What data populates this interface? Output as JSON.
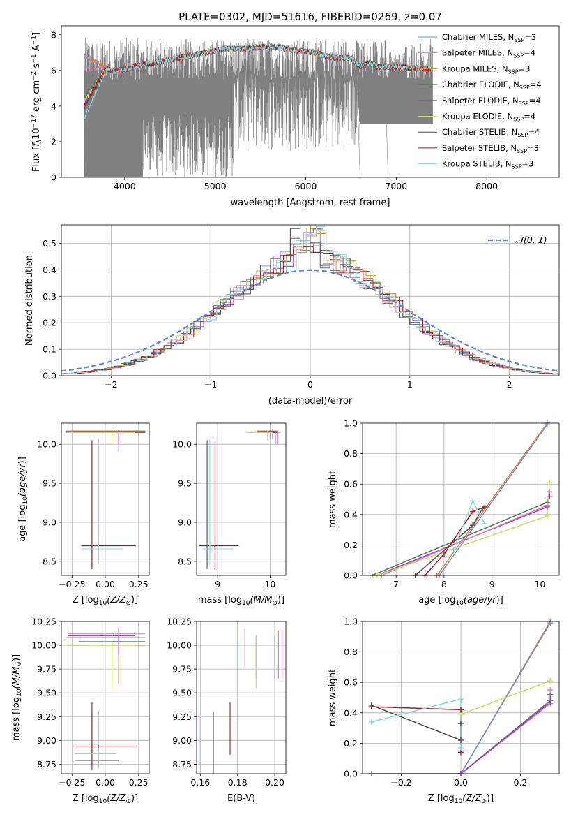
{
  "title": "PLATE=0302, MJD=51616, FIBERID=0269, z=0.07",
  "colors": {
    "chabrier_miles": "#6a8fd8",
    "salpeter_miles": "#e07fbf",
    "kroupa_miles": "#e8843a",
    "chabrier_elodie": "#557a55",
    "salpeter_elodie": "#9b3fbf",
    "kroupa_elodie": "#c8e060",
    "chabrier_stelib": "#4d4d4d",
    "salpeter_stelib": "#b5161c",
    "kroupa_stelib": "#7fdbe0",
    "observed": "#808080",
    "gaussian": "#5b85d6"
  },
  "legend_labels": [
    {
      "text": "Chabrier MILES, N",
      "sub": "SSP",
      "val": "=3",
      "color": "chabrier_miles"
    },
    {
      "text": "Salpeter MILES, N",
      "sub": "SSP",
      "val": "=4",
      "color": "salpeter_miles"
    },
    {
      "text": "Kroupa MILES, N",
      "sub": "SSP",
      "val": "=3",
      "color": "kroupa_miles"
    },
    {
      "text": "Chabrier ELODIE, N",
      "sub": "SSP",
      "val": "=4",
      "color": "chabrier_elodie"
    },
    {
      "text": "Salpeter ELODIE, N",
      "sub": "SSP",
      "val": "=4",
      "color": "salpeter_elodie"
    },
    {
      "text": "Kroupa ELODIE, N",
      "sub": "SSP",
      "val": "=4",
      "color": "kroupa_elodie"
    },
    {
      "text": "Chabrier STELIB, N",
      "sub": "SSP",
      "val": "=4",
      "color": "chabrier_stelib"
    },
    {
      "text": "Salpeter STELIB, N",
      "sub": "SSP",
      "val": "=3",
      "color": "salpeter_stelib"
    },
    {
      "text": "Kroupa STELIB, N",
      "sub": "SSP",
      "val": "=3",
      "color": "kroupa_stelib"
    }
  ],
  "chart_data": [
    {
      "id": "spectrum",
      "type": "line",
      "xlabel": "wavelength [Angstrom, rest frame]",
      "ylabel_parts": [
        "Flux [",
        "f",
        "λ",
        "10",
        "−17",
        " erg cm",
        "−2",
        " s",
        "−1",
        " A",
        "−1",
        "]"
      ],
      "xlim": [
        3300,
        8800
      ],
      "ylim": [
        0,
        8.5
      ],
      "xticks": [
        4000,
        5000,
        6000,
        7000,
        8000
      ],
      "yticks": [
        0,
        2,
        4,
        6,
        8
      ],
      "grid": false,
      "legend": "top-right",
      "observed_range": [
        3550,
        7400
      ],
      "observed_level_range": [
        5.5,
        7.8
      ],
      "model_knots": {
        "x": [
          3550,
          3650,
          3750,
          3850,
          3950,
          4100,
          4300,
          4500,
          4700,
          4900,
          5100,
          5300,
          5500,
          5700,
          5900,
          6100,
          6300,
          6500,
          6600,
          6700,
          6800,
          7000,
          7200,
          7400
        ],
        "y": [
          6.0,
          6.1,
          6.3,
          6.0,
          6.0,
          6.2,
          6.4,
          6.6,
          6.8,
          7.0,
          7.2,
          7.2,
          7.3,
          7.3,
          7.1,
          7.0,
          6.7,
          6.7,
          6.2,
          6.4,
          6.2,
          6.2,
          6.1,
          6.1
        ]
      },
      "model_starts": {
        "chabrier_miles": 6.8,
        "salpeter_miles": 6.1,
        "kroupa_miles": 6.8,
        "chabrier_elodie": 4.5,
        "salpeter_elodie": 4.1,
        "kroupa_elodie": 4.2,
        "chabrier_stelib": 3.9,
        "salpeter_stelib": 4.0,
        "kroupa_stelib": 3.3
      }
    },
    {
      "id": "residuals",
      "type": "histogram",
      "xlabel": "(data-model)/error",
      "ylabel": "Normed distribution",
      "xlim": [
        -2.5,
        2.5
      ],
      "ylim": [
        0,
        0.57
      ],
      "xticks": [
        -2,
        -1,
        0,
        1,
        2
      ],
      "yticks": [
        0.0,
        0.1,
        0.2,
        0.3,
        0.4,
        0.5
      ],
      "grid": true,
      "legend_label": "𝒩(0, 1)",
      "legend": "top-right",
      "bin_width": 0.1
    },
    {
      "id": "age_vs_Z",
      "type": "errorbar",
      "xlabel": "Z [log",
      "xlabel_tail": "(Z/Z",
      "ylabel": "age  [log",
      "xlim": [
        -0.33,
        0.33
      ],
      "ylim": [
        8.32,
        10.27
      ],
      "xticks": [
        -0.25,
        0.0,
        0.25
      ],
      "yticks": [
        8.5,
        9.0,
        9.5,
        10.0
      ],
      "grid": true
    },
    {
      "id": "age_vs_mass",
      "type": "errorbar",
      "xlabel": "mass [log",
      "xlim": [
        8.6,
        10.3
      ],
      "ylim": [
        8.32,
        10.27
      ],
      "xticks": [
        9,
        10
      ],
      "yticks": [
        8.5,
        9.0,
        9.5,
        10.0
      ],
      "grid": true
    },
    {
      "id": "weight_vs_age",
      "type": "line",
      "xlabel": "age  [log",
      "ylabel": "mass weight",
      "xlim": [
        6.3,
        10.4
      ],
      "ylim": [
        0,
        1
      ],
      "xticks": [
        7,
        8,
        9,
        10
      ],
      "yticks": [
        0.0,
        0.2,
        0.4,
        0.6,
        0.8,
        1.0
      ],
      "grid": true,
      "series": [
        {
          "color": "kroupa_miles",
          "x": [
            7.85,
            10.15
          ],
          "y": [
            0.0,
            1.0
          ]
        },
        {
          "color": "chabrier_miles",
          "x": [
            7.9,
            10.15
          ],
          "y": [
            0.0,
            0.99
          ]
        },
        {
          "color": "chabrier_elodie",
          "x": [
            6.5,
            10.15,
            10.2
          ],
          "y": [
            0.0,
            0.48,
            0.52
          ]
        },
        {
          "color": "salpeter_elodie",
          "x": [
            6.6,
            10.15,
            10.2
          ],
          "y": [
            0.0,
            0.45,
            0.52
          ]
        },
        {
          "color": "salpeter_miles",
          "x": [
            6.7,
            10.15,
            10.2
          ],
          "y": [
            0.0,
            0.46,
            0.55
          ]
        },
        {
          "color": "kroupa_elodie",
          "x": [
            6.6,
            10.15,
            10.2
          ],
          "y": [
            0.0,
            0.39,
            0.61
          ]
        },
        {
          "color": "chabrier_stelib",
          "x": [
            7.4,
            8.6,
            8.8
          ],
          "y": [
            0.0,
            0.33,
            0.44
          ]
        },
        {
          "color": "salpeter_stelib",
          "x": [
            7.6,
            8.0,
            8.6,
            8.85
          ],
          "y": [
            0.0,
            0.14,
            0.42,
            0.45
          ]
        },
        {
          "color": "kroupa_stelib",
          "x": [
            8.2,
            8.6,
            8.85
          ],
          "y": [
            0.17,
            0.49,
            0.34
          ]
        }
      ]
    },
    {
      "id": "mass_vs_Z",
      "type": "errorbar",
      "xlabel": "Z [log",
      "ylabel": "mass [log",
      "xlim": [
        -0.33,
        0.33
      ],
      "ylim": [
        8.65,
        10.25
      ],
      "xticks": [
        -0.25,
        0.0,
        0.25
      ],
      "yticks": [
        8.75,
        9.0,
        9.25,
        9.5,
        9.75,
        10.0,
        10.25
      ],
      "grid": true
    },
    {
      "id": "mass_vs_ebv",
      "type": "errorbar",
      "xlabel": "E(B-V)",
      "xlim": [
        0.158,
        0.206
      ],
      "ylim": [
        8.65,
        10.25
      ],
      "xticks": [
        0.16,
        0.18,
        0.2
      ],
      "yticks": [
        8.75,
        9.0,
        9.25,
        9.5,
        9.75,
        10.0,
        10.25
      ],
      "grid": true
    },
    {
      "id": "weight_vs_Z",
      "type": "line",
      "xlabel": "Z [log",
      "ylabel": "mass weight",
      "xlim": [
        -0.33,
        0.33
      ],
      "ylim": [
        0,
        1
      ],
      "xticks": [
        -0.2,
        0.0,
        0.2
      ],
      "yticks": [
        0.0,
        0.2,
        0.4,
        0.6,
        0.8,
        1.0
      ],
      "grid": true,
      "series": [
        {
          "color": "kroupa_miles",
          "x": [
            -0.3,
            0.0,
            0.3
          ],
          "y": [
            0.0,
            0.0,
            1.0
          ]
        },
        {
          "color": "chabrier_miles",
          "x": [
            -0.3,
            0.0,
            0.3
          ],
          "y": [
            0.0,
            0.0,
            0.99
          ]
        },
        {
          "color": "kroupa_elodie",
          "x": [
            0.0,
            0.3
          ],
          "y": [
            0.39,
            0.61
          ]
        },
        {
          "color": "chabrier_elodie",
          "x": [
            0.0,
            0.3,
            0.3
          ],
          "y": [
            0.0,
            0.48,
            0.52
          ]
        },
        {
          "color": "salpeter_miles",
          "x": [
            0.0,
            0.3,
            0.3
          ],
          "y": [
            0.0,
            0.46,
            0.55
          ]
        },
        {
          "color": "salpeter_elodie",
          "x": [
            0.0,
            0.3
          ],
          "y": [
            0.0,
            0.47
          ]
        },
        {
          "color": "salpeter_stelib",
          "x": [
            -0.3,
            0.0,
            0.0
          ],
          "y": [
            0.44,
            0.42,
            0.14
          ]
        },
        {
          "color": "chabrier_stelib",
          "x": [
            -0.3,
            0.0,
            0.0
          ],
          "y": [
            0.45,
            0.22,
            0.33
          ]
        },
        {
          "color": "kroupa_stelib",
          "x": [
            -0.3,
            0.0,
            0.0
          ],
          "y": [
            0.34,
            0.49,
            0.17
          ]
        }
      ]
    }
  ],
  "errorbars": {
    "age_vs_Z": [
      {
        "color": "chabrier_miles",
        "x": 0.05,
        "y": 10.16,
        "xe": [
          0.32,
          0.3
        ],
        "ye": [
          0.02,
          0.02
        ]
      },
      {
        "color": "salpeter_miles",
        "x": 0.1,
        "y": 10.15,
        "xe": [
          0.38,
          0.2
        ],
        "ye": [
          0.25,
          0.03
        ]
      },
      {
        "color": "kroupa_miles",
        "x": 0.1,
        "y": 10.16,
        "xe": [
          0.38,
          0.2
        ],
        "ye": [
          0.12,
          0.02
        ]
      },
      {
        "color": "chabrier_elodie",
        "x": 0.05,
        "y": 10.17,
        "xe": [
          0.35,
          0.25
        ],
        "ye": [
          0.1,
          0.02
        ]
      },
      {
        "color": "salpeter_elodie",
        "x": 0.1,
        "y": 10.15,
        "xe": [
          0.38,
          0.2
        ],
        "ye": [
          0.15,
          0.02
        ]
      },
      {
        "color": "kroupa_elodie",
        "x": 0.05,
        "y": 10.15,
        "xe": [
          0.35,
          0.17
        ],
        "ye": [
          0.15,
          0.02
        ]
      },
      {
        "color": "chabrier_stelib",
        "x": -0.1,
        "y": 8.7,
        "xe": [
          0.08,
          0.2
        ],
        "ye": [
          0.3,
          1.35
        ]
      },
      {
        "color": "salpeter_stelib",
        "x": -0.1,
        "y": 8.7,
        "xe": [
          0.08,
          0.33
        ],
        "ye": [
          0.3,
          1.35
        ]
      },
      {
        "color": "kroupa_stelib",
        "x": -0.05,
        "y": 8.66,
        "xe": [
          0.13,
          0.18
        ],
        "ye": [
          0.2,
          1.4
        ]
      }
    ],
    "age_vs_mass": [
      {
        "color": "chabrier_miles",
        "x": 10.05,
        "y": 10.16,
        "xe": [
          0.3,
          0.15
        ],
        "ye": [
          0.1,
          0.02
        ]
      },
      {
        "color": "salpeter_miles",
        "x": 10.15,
        "y": 10.15,
        "xe": [
          0.3,
          0.05
        ],
        "ye": [
          0.15,
          0.02
        ]
      },
      {
        "color": "kroupa_miles",
        "x": 10.0,
        "y": 10.16,
        "xe": [
          0.3,
          0.15
        ],
        "ye": [
          0.1,
          0.02
        ]
      },
      {
        "color": "chabrier_elodie",
        "x": 10.05,
        "y": 10.17,
        "xe": [
          0.3,
          0.1
        ],
        "ye": [
          0.1,
          0.02
        ]
      },
      {
        "color": "salpeter_elodie",
        "x": 10.1,
        "y": 10.15,
        "xe": [
          0.3,
          0.05
        ],
        "ye": [
          0.15,
          0.02
        ]
      },
      {
        "color": "kroupa_elodie",
        "x": 9.95,
        "y": 10.15,
        "xe": [
          0.4,
          0.1
        ],
        "ye": [
          0.1,
          0.02
        ]
      },
      {
        "color": "chabrier_stelib",
        "x": 8.8,
        "y": 8.7,
        "xe": [
          0.15,
          0.3
        ],
        "ye": [
          0.3,
          1.35
        ]
      },
      {
        "color": "salpeter_stelib",
        "x": 8.95,
        "y": 8.7,
        "xe": [
          0.3,
          0.45
        ],
        "ye": [
          0.3,
          1.35
        ]
      },
      {
        "color": "kroupa_stelib",
        "x": 8.85,
        "y": 8.66,
        "xe": [
          0.15,
          0.45
        ],
        "ye": [
          0.2,
          1.4
        ]
      }
    ],
    "mass_vs_Z": [
      {
        "color": "chabrier_miles",
        "x": 0.05,
        "y": 10.04,
        "xe": [
          0.25,
          0.25
        ],
        "ye": [
          0.1,
          0.03
        ]
      },
      {
        "color": "salpeter_miles",
        "x": 0.1,
        "y": 10.12,
        "xe": [
          0.38,
          0.2
        ],
        "ye": [
          0.3,
          0.03
        ]
      },
      {
        "color": "kroupa_miles",
        "x": 0.1,
        "y": 10.0,
        "xe": [
          0.38,
          0.2
        ],
        "ye": [
          0.4,
          0.03
        ]
      },
      {
        "color": "chabrier_elodie",
        "x": 0.05,
        "y": 10.08,
        "xe": [
          0.35,
          0.25
        ],
        "ye": [
          0.45,
          0.03
        ]
      },
      {
        "color": "salpeter_elodie",
        "x": 0.1,
        "y": 10.1,
        "xe": [
          0.38,
          0.12
        ],
        "ye": [
          0.2,
          0.08
        ]
      },
      {
        "color": "kroupa_elodie",
        "x": 0.05,
        "y": 10.0,
        "xe": [
          0.35,
          0.17
        ],
        "ye": [
          0.45,
          0.03
        ]
      },
      {
        "color": "chabrier_stelib",
        "x": -0.1,
        "y": 8.79,
        "xe": [
          0.13,
          0.2
        ],
        "ye": [
          0.1,
          0.5
        ]
      },
      {
        "color": "salpeter_stelib",
        "x": -0.1,
        "y": 8.94,
        "xe": [
          0.13,
          0.33
        ],
        "ye": [
          0.2,
          0.46
        ]
      },
      {
        "color": "kroupa_stelib",
        "x": -0.05,
        "y": 8.86,
        "xe": [
          0.18,
          0.13
        ],
        "ye": [
          0.15,
          0.45
        ]
      }
    ],
    "mass_vs_ebv": [
      {
        "color": "chabrier_miles",
        "x": 0.2,
        "y": 9.95,
        "xe": [
          0,
          0
        ],
        "ye": [
          0.3,
          0.15
        ]
      },
      {
        "color": "salpeter_miles",
        "x": 0.204,
        "y": 10.0,
        "xe": [
          0,
          0
        ],
        "ye": [
          0.35,
          0.17
        ]
      },
      {
        "color": "kroupa_miles",
        "x": 0.202,
        "y": 9.9,
        "xe": [
          0,
          0
        ],
        "ye": [
          0.25,
          0.25
        ]
      },
      {
        "color": "chabrier_elodie",
        "x": 0.19,
        "y": 9.9,
        "xe": [
          0,
          0
        ],
        "ye": [
          0.25,
          0.2
        ]
      },
      {
        "color": "salpeter_elodie",
        "x": 0.184,
        "y": 9.92,
        "xe": [
          0,
          0
        ],
        "ye": [
          0.15,
          0.25
        ]
      },
      {
        "color": "kroupa_elodie",
        "x": 0.19,
        "y": 9.85,
        "xe": [
          0,
          0
        ],
        "ye": [
          0.3,
          0.25
        ]
      },
      {
        "color": "chabrier_stelib",
        "x": 0.167,
        "y": 8.95,
        "xe": [
          0,
          0
        ],
        "ye": [
          0.3,
          0.35
        ]
      },
      {
        "color": "salpeter_stelib",
        "x": 0.176,
        "y": 9.1,
        "xe": [
          0,
          0
        ],
        "ye": [
          0.25,
          0.3
        ]
      },
      {
        "color": "kroupa_stelib",
        "x": 0.16,
        "y": 9.0,
        "xe": [
          0,
          0
        ],
        "ye": [
          0.3,
          0.28
        ]
      }
    ]
  }
}
